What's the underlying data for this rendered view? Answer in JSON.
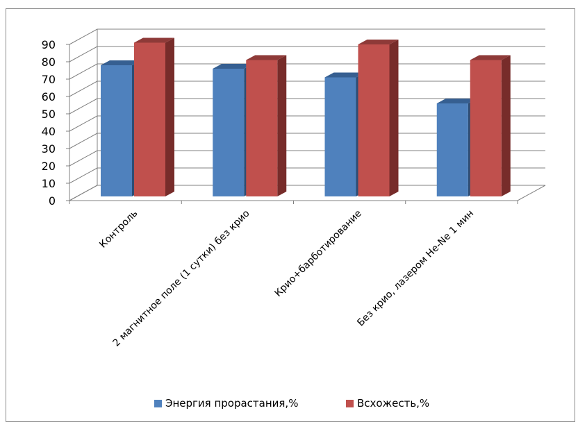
{
  "chart_data": {
    "type": "bar",
    "categories": [
      "Контроль",
      "2 магнитное поле (1 сутки) без крио",
      "Крио+барботирование",
      "Без крио, лазером He-Ne 1 мин"
    ],
    "series": [
      {
        "name": "Энергия прорастания,%",
        "values": [
          78,
          76,
          71,
          56
        ],
        "color": "#4f81bd",
        "side_color": "#2c4d75",
        "top_color": "#365f91"
      },
      {
        "name": "Всхожесть,%",
        "values": [
          91,
          81,
          90,
          81
        ],
        "color": "#c0504d",
        "side_color": "#772c2a",
        "top_color": "#8e3a38"
      }
    ],
    "yticks": [
      0,
      10,
      20,
      30,
      40,
      50,
      60,
      70,
      80,
      90
    ],
    "ylim": [
      0,
      90
    ],
    "title": "",
    "xlabel": "",
    "ylabel": "",
    "grid": true,
    "legend_position": "bottom",
    "three_d": true
  }
}
